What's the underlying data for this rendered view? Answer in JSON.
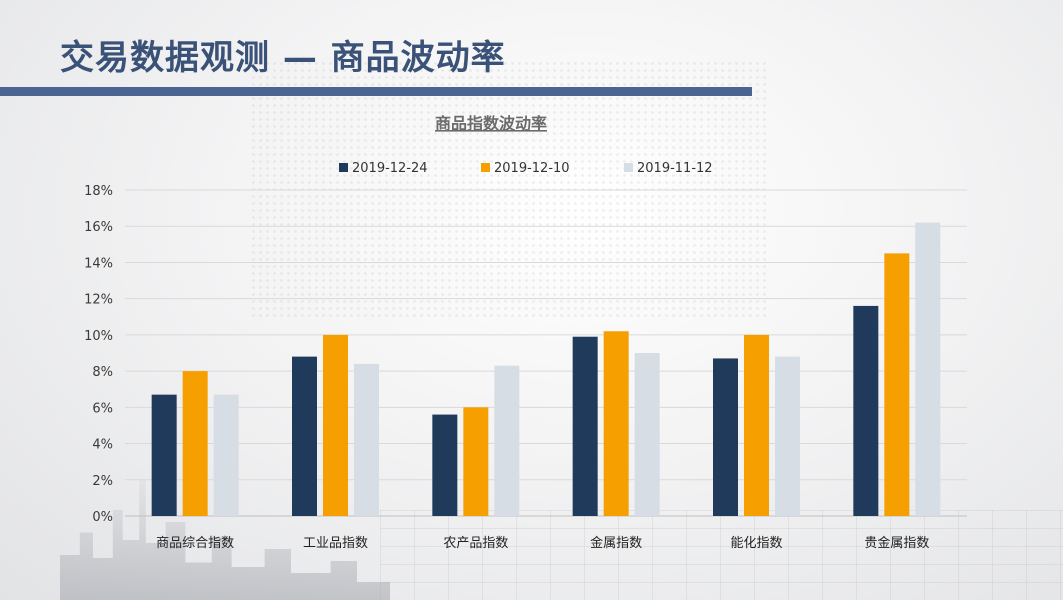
{
  "page": {
    "title": "交易数据观测 — 商品波动率"
  },
  "colors": {
    "title": "#3b5278",
    "title_bar": "#4a6592"
  },
  "chart_data": {
    "type": "bar",
    "title": "商品指数波动率",
    "categories": [
      "商品综合指数",
      "工业品指数",
      "农产品指数",
      "金属指数",
      "能化指数",
      "贵金属指数"
    ],
    "series": [
      {
        "name": "2019-12-24",
        "color": "#1f3a5a",
        "values": [
          6.7,
          8.8,
          5.6,
          9.9,
          8.7,
          11.6
        ]
      },
      {
        "name": "2019-12-10",
        "color": "#f5a000",
        "values": [
          8.0,
          10.0,
          6.0,
          10.2,
          10.0,
          14.5
        ]
      },
      {
        "name": "2019-11-12",
        "color": "#d7dde5",
        "values": [
          6.7,
          8.4,
          8.3,
          9.0,
          8.8,
          16.2
        ]
      }
    ],
    "ylim": [
      0,
      18
    ],
    "yticks": [
      "0%",
      "2%",
      "4%",
      "6%",
      "8%",
      "10%",
      "12%",
      "14%",
      "16%",
      "18%"
    ],
    "legend_position": "top",
    "grid": true
  }
}
